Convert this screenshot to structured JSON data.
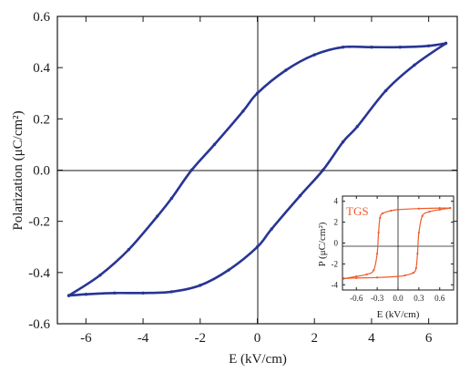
{
  "chart_data": [
    {
      "id": "main",
      "type": "line",
      "xlabel": "E (kV/cm)",
      "ylabel": "Polarization (μC/cm²)",
      "xlim": [
        -7,
        7
      ],
      "ylim": [
        -0.6,
        0.6
      ],
      "xticks": [
        -6,
        -4,
        -2,
        0,
        2,
        4,
        6
      ],
      "yticks": [
        -0.6,
        -0.4,
        -0.2,
        0.0,
        0.2,
        0.4,
        0.6
      ],
      "xtick_labels": [
        "-6",
        "-4",
        "-2",
        "0",
        "2",
        "4",
        "6"
      ],
      "ytick_labels": [
        "-0.6",
        "-0.4",
        "-0.2",
        "0.0",
        "0.2",
        "0.4",
        "0.6"
      ],
      "grid": false,
      "color": "#283593",
      "series": [
        {
          "x": [
            -6.6,
            -5.5,
            -4.5,
            -3.5,
            -3.0,
            -2.3,
            -1.5,
            -0.5,
            0.0,
            1.0,
            2.0,
            3.0,
            4.0,
            5.0,
            6.0,
            6.6
          ],
          "y": [
            -0.49,
            -0.41,
            -0.31,
            -0.18,
            -0.11,
            0.0,
            0.1,
            0.23,
            0.3,
            0.39,
            0.45,
            0.48,
            0.48,
            0.48,
            0.485,
            0.495
          ]
        },
        {
          "x": [
            6.6,
            5.5,
            4.5,
            3.5,
            3.0,
            2.3,
            1.5,
            0.5,
            0.0,
            -1.0,
            -2.0,
            -3.0,
            -4.0,
            -5.0,
            -6.0,
            -6.6
          ],
          "y": [
            0.495,
            0.41,
            0.31,
            0.17,
            0.11,
            0.0,
            -0.1,
            -0.23,
            -0.3,
            -0.39,
            -0.45,
            -0.475,
            -0.48,
            -0.48,
            -0.485,
            -0.49
          ]
        }
      ]
    },
    {
      "id": "inset",
      "type": "line",
      "label": "TGS",
      "xlabel": "E (kV/cm)",
      "ylabel": "P (μC/cm²)",
      "xlim": [
        -0.8,
        0.8
      ],
      "ylim": [
        -4.5,
        4.5
      ],
      "xticks": [
        -0.6,
        -0.3,
        0.0,
        0.3,
        0.6
      ],
      "yticks": [
        -4,
        -2,
        0,
        2,
        4
      ],
      "xtick_labels": [
        "-0.6",
        "-0.3",
        "0.0",
        "0.3",
        "0.6"
      ],
      "ytick_labels": [
        "-4",
        "-2",
        "0",
        "2",
        "4"
      ],
      "color": "#ef5a2a",
      "series": [
        {
          "x": [
            -0.78,
            -0.6,
            -0.45,
            -0.35,
            -0.3,
            -0.28,
            -0.26,
            -0.22,
            -0.1,
            0.0,
            0.3,
            0.6,
            0.75
          ],
          "y": [
            -3.4,
            -3.2,
            -3.0,
            -2.6,
            -1.0,
            1.0,
            2.4,
            2.85,
            3.1,
            3.2,
            3.3,
            3.35,
            3.35
          ]
        },
        {
          "x": [
            0.75,
            0.6,
            0.45,
            0.35,
            0.3,
            0.28,
            0.26,
            0.22,
            0.1,
            0.0,
            -0.3,
            -0.6,
            -0.78
          ],
          "y": [
            3.35,
            3.2,
            3.0,
            2.6,
            1.0,
            -1.0,
            -2.4,
            -2.85,
            -3.1,
            -3.2,
            -3.3,
            -3.35,
            -3.4
          ]
        }
      ]
    }
  ]
}
